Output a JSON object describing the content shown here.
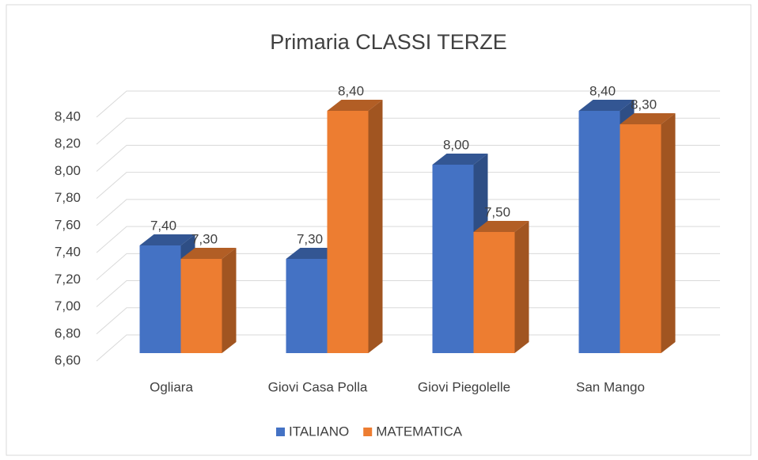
{
  "chart_data": {
    "type": "bar3d",
    "title": "Primaria CLASSI TERZE",
    "categories": [
      "Ogliara",
      "Giovi Casa Polla",
      "Giovi Piegolelle",
      "San Mango"
    ],
    "series": [
      {
        "name": "ITALIANO",
        "color": "#4472c4",
        "values": [
          7.4,
          7.3,
          8.0,
          8.4
        ],
        "value_labels": [
          "7,40",
          "7,30",
          "8,00",
          "8,40"
        ]
      },
      {
        "name": "MATEMATICA",
        "color": "#ed7d31",
        "values": [
          7.3,
          8.4,
          7.5,
          8.3
        ],
        "value_labels": [
          "7,30",
          "8,40",
          "7,50",
          "8,30"
        ]
      }
    ],
    "ylim": [
      6.6,
      8.4
    ],
    "yticks": [
      {
        "value": 6.6,
        "label": "6,60"
      },
      {
        "value": 6.8,
        "label": "6,80"
      },
      {
        "value": 7.0,
        "label": "7,00"
      },
      {
        "value": 7.2,
        "label": "7,20"
      },
      {
        "value": 7.4,
        "label": "7,40"
      },
      {
        "value": 7.6,
        "label": "7,60"
      },
      {
        "value": 7.8,
        "label": "7,80"
      },
      {
        "value": 8.0,
        "label": "8,00"
      },
      {
        "value": 8.2,
        "label": "8,20"
      },
      {
        "value": 8.4,
        "label": "8,40"
      }
    ],
    "grid": true,
    "legend": "bottom"
  }
}
